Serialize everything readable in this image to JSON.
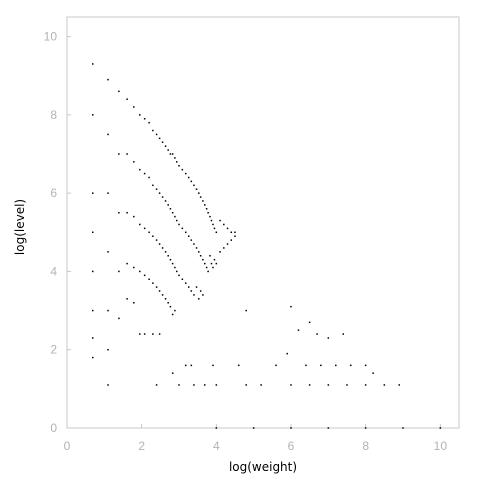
{
  "chart_data": {
    "type": "scatter",
    "title": "",
    "xlabel": "log(weight)",
    "ylabel": "log(level)",
    "xlim": [
      0,
      10.5
    ],
    "ylim": [
      0,
      10.5
    ],
    "x_ticks": [
      "0",
      "2",
      "4",
      "6",
      "8",
      "10"
    ],
    "y_ticks": [
      "0",
      "2",
      "4",
      "6",
      "8",
      "10"
    ],
    "grid": false,
    "legend": "none",
    "point_color": "#000000",
    "frame_color": "#c8c8c8",
    "tick_label_color": "#b3b3b3",
    "series": [
      {
        "description_values_only": true,
        "points": [
          [
            0.69,
            9.3
          ],
          [
            0.69,
            8.0
          ],
          [
            0.69,
            6.0
          ],
          [
            0.69,
            5.0
          ],
          [
            0.69,
            4.0
          ],
          [
            0.69,
            3.0
          ],
          [
            0.69,
            2.3
          ],
          [
            0.69,
            1.8
          ],
          [
            1.1,
            8.9
          ],
          [
            1.1,
            7.5
          ],
          [
            1.1,
            6.0
          ],
          [
            1.1,
            4.5
          ],
          [
            1.1,
            3.0
          ],
          [
            1.1,
            2.0
          ],
          [
            1.1,
            1.1
          ],
          [
            1.39,
            8.6
          ],
          [
            1.39,
            7.0
          ],
          [
            1.39,
            5.5
          ],
          [
            1.39,
            4.0
          ],
          [
            1.39,
            2.8
          ],
          [
            1.61,
            8.4
          ],
          [
            1.61,
            7.0
          ],
          [
            1.61,
            5.5
          ],
          [
            1.61,
            4.2
          ],
          [
            1.61,
            3.3
          ],
          [
            1.79,
            8.2
          ],
          [
            1.79,
            6.8
          ],
          [
            1.79,
            5.4
          ],
          [
            1.79,
            4.1
          ],
          [
            1.79,
            3.2
          ],
          [
            1.95,
            8.0
          ],
          [
            1.95,
            6.6
          ],
          [
            1.95,
            5.2
          ],
          [
            1.95,
            4.0
          ],
          [
            1.95,
            2.4
          ],
          [
            2.08,
            7.9
          ],
          [
            2.08,
            6.5
          ],
          [
            2.08,
            5.1
          ],
          [
            2.08,
            3.9
          ],
          [
            2.08,
            2.4
          ],
          [
            2.2,
            7.8
          ],
          [
            2.2,
            6.4
          ],
          [
            2.2,
            5.0
          ],
          [
            2.2,
            3.8
          ],
          [
            2.3,
            7.6
          ],
          [
            2.3,
            6.2
          ],
          [
            2.3,
            4.9
          ],
          [
            2.3,
            3.7
          ],
          [
            2.3,
            2.4
          ],
          [
            2.4,
            7.5
          ],
          [
            2.4,
            6.1
          ],
          [
            2.4,
            4.8
          ],
          [
            2.4,
            3.6
          ],
          [
            2.4,
            1.1
          ],
          [
            2.48,
            7.4
          ],
          [
            2.48,
            6.0
          ],
          [
            2.48,
            4.7
          ],
          [
            2.48,
            3.5
          ],
          [
            2.48,
            2.4
          ],
          [
            2.56,
            7.3
          ],
          [
            2.56,
            5.9
          ],
          [
            2.56,
            4.6
          ],
          [
            2.56,
            3.4
          ],
          [
            2.64,
            7.2
          ],
          [
            2.64,
            5.8
          ],
          [
            2.64,
            4.5
          ],
          [
            2.64,
            3.3
          ],
          [
            2.71,
            7.1
          ],
          [
            2.71,
            5.7
          ],
          [
            2.71,
            4.4
          ],
          [
            2.71,
            3.2
          ],
          [
            2.77,
            7.0
          ],
          [
            2.77,
            5.6
          ],
          [
            2.77,
            4.3
          ],
          [
            2.77,
            3.1
          ],
          [
            2.83,
            7.0
          ],
          [
            2.83,
            5.5
          ],
          [
            2.83,
            4.2
          ],
          [
            2.83,
            2.9
          ],
          [
            2.83,
            1.4
          ],
          [
            2.89,
            6.9
          ],
          [
            2.89,
            5.4
          ],
          [
            2.89,
            4.1
          ],
          [
            2.89,
            3.0
          ],
          [
            2.94,
            6.8
          ],
          [
            2.94,
            5.3
          ],
          [
            2.94,
            4.0
          ],
          [
            3.0,
            6.7
          ],
          [
            3.0,
            5.2
          ],
          [
            3.0,
            3.9
          ],
          [
            3.0,
            1.1
          ],
          [
            3.09,
            6.6
          ],
          [
            3.09,
            5.1
          ],
          [
            3.09,
            3.8
          ],
          [
            3.18,
            6.5
          ],
          [
            3.18,
            5.0
          ],
          [
            3.18,
            3.7
          ],
          [
            3.18,
            1.6
          ],
          [
            3.26,
            6.4
          ],
          [
            3.26,
            4.9
          ],
          [
            3.26,
            3.6
          ],
          [
            3.33,
            6.3
          ],
          [
            3.33,
            4.8
          ],
          [
            3.33,
            3.5
          ],
          [
            3.33,
            1.6
          ],
          [
            3.4,
            6.2
          ],
          [
            3.4,
            4.7
          ],
          [
            3.4,
            3.4
          ],
          [
            3.4,
            1.1
          ],
          [
            3.47,
            6.1
          ],
          [
            3.47,
            4.6
          ],
          [
            3.47,
            3.6
          ],
          [
            3.53,
            6.0
          ],
          [
            3.53,
            4.5
          ],
          [
            3.53,
            3.3
          ],
          [
            3.58,
            5.9
          ],
          [
            3.58,
            4.4
          ],
          [
            3.58,
            3.5
          ],
          [
            3.64,
            5.8
          ],
          [
            3.64,
            4.3
          ],
          [
            3.64,
            3.4
          ],
          [
            3.69,
            5.7
          ],
          [
            3.69,
            4.2
          ],
          [
            3.69,
            1.1
          ],
          [
            3.74,
            5.6
          ],
          [
            3.74,
            4.1
          ],
          [
            3.78,
            5.5
          ],
          [
            3.78,
            4.0
          ],
          [
            3.83,
            5.4
          ],
          [
            3.83,
            4.4
          ],
          [
            3.87,
            5.3
          ],
          [
            3.87,
            4.2
          ],
          [
            3.91,
            5.2
          ],
          [
            3.91,
            4.1
          ],
          [
            3.91,
            1.6
          ],
          [
            3.95,
            5.1
          ],
          [
            3.95,
            4.3
          ],
          [
            4.0,
            5.0
          ],
          [
            4.0,
            4.2
          ],
          [
            4.0,
            1.1
          ],
          [
            4.1,
            5.3
          ],
          [
            4.1,
            4.5
          ],
          [
            4.2,
            5.2
          ],
          [
            4.2,
            4.6
          ],
          [
            4.3,
            5.1
          ],
          [
            4.3,
            4.7
          ],
          [
            4.4,
            5.0
          ],
          [
            4.4,
            4.8
          ],
          [
            4.5,
            5.0
          ],
          [
            4.5,
            4.9
          ],
          [
            4.8,
            3.0
          ],
          [
            4.6,
            1.6
          ],
          [
            4.8,
            1.1
          ],
          [
            5.2,
            1.1
          ],
          [
            5.6,
            1.6
          ],
          [
            5.9,
            1.9
          ],
          [
            6.0,
            3.1
          ],
          [
            6.2,
            2.5
          ],
          [
            6.5,
            2.7
          ],
          [
            6.7,
            2.4
          ],
          [
            7.0,
            2.3
          ],
          [
            7.4,
            2.4
          ],
          [
            6.4,
            1.6
          ],
          [
            6.8,
            1.6
          ],
          [
            7.2,
            1.6
          ],
          [
            7.6,
            1.6
          ],
          [
            8.0,
            1.6
          ],
          [
            8.2,
            1.4
          ],
          [
            6.0,
            1.1
          ],
          [
            6.5,
            1.1
          ],
          [
            7.0,
            1.1
          ],
          [
            7.5,
            1.1
          ],
          [
            8.0,
            1.1
          ],
          [
            8.5,
            1.1
          ],
          [
            8.9,
            1.1
          ],
          [
            4.0,
            0
          ],
          [
            5.0,
            0
          ],
          [
            6.0,
            0
          ],
          [
            7.0,
            0
          ],
          [
            8.0,
            0
          ],
          [
            9.0,
            0
          ],
          [
            10.0,
            0
          ]
        ]
      }
    ]
  }
}
